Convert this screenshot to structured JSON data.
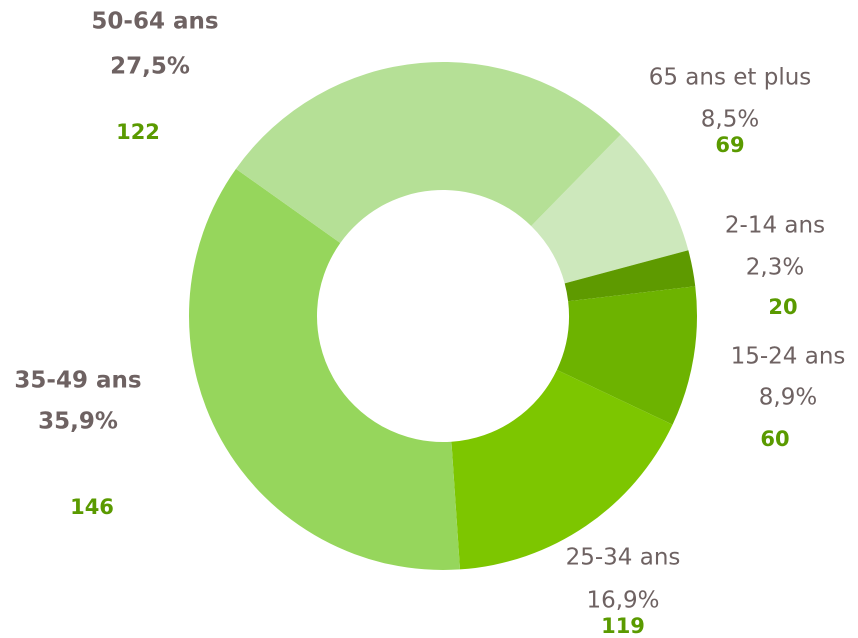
{
  "chart_data": {
    "type": "donut",
    "categories": [
      "65 ans et plus",
      "2-14 ans",
      "15-24 ans",
      "25-34 ans",
      "35-49 ans",
      "50-64 ans"
    ],
    "values": [
      8.5,
      2.3,
      8.9,
      16.9,
      35.9,
      27.5
    ],
    "value_labels": [
      "8,5%",
      "2,3%",
      "8,9%",
      "16,9%",
      "35,9%",
      "27,5%"
    ],
    "counts": [
      69,
      20,
      60,
      119,
      146,
      122
    ],
    "colors": [
      "#cde8bc",
      "#5e9a00",
      "#6db300",
      "#7dc600",
      "#96d65c",
      "#b5e096"
    ]
  }
}
